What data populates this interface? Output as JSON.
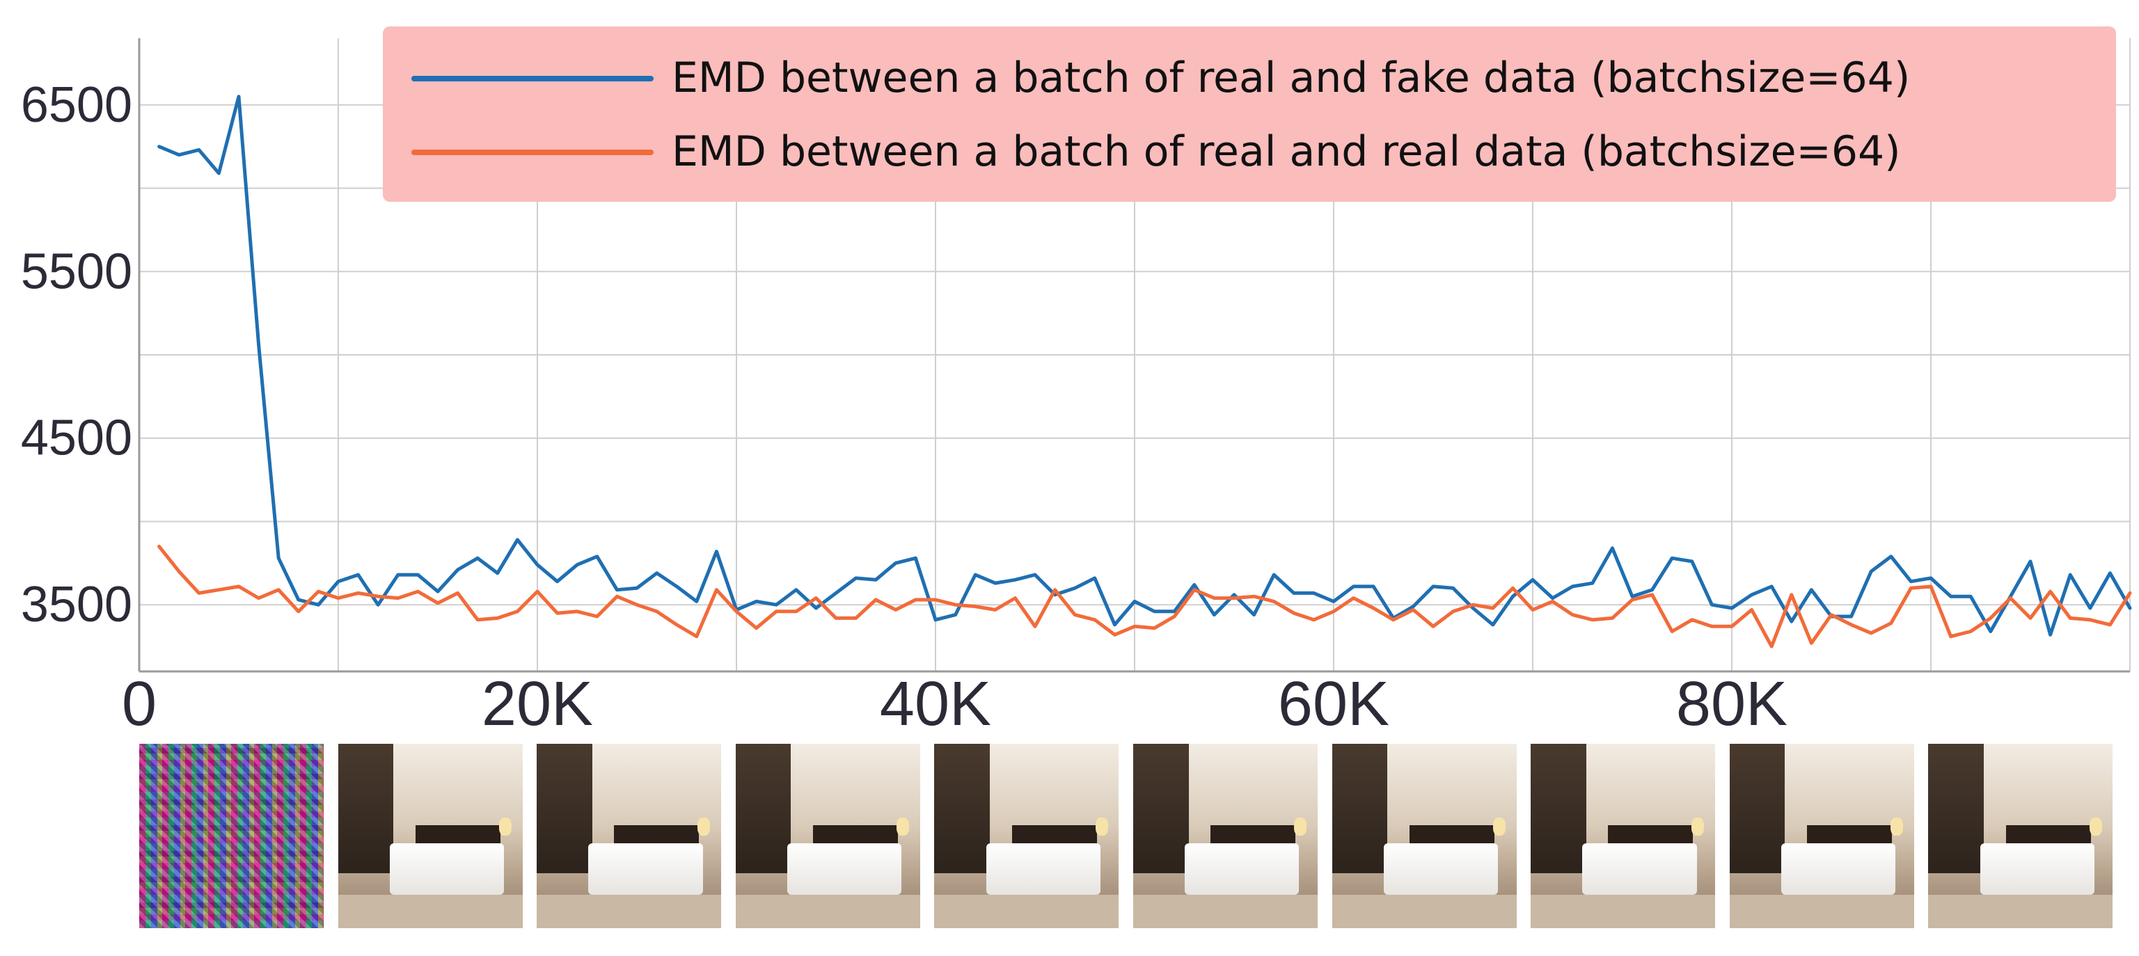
{
  "chart_data": {
    "type": "line",
    "x": [
      1000,
      2000,
      3000,
      4000,
      5000,
      6000,
      7000,
      8000,
      9000,
      10000,
      11000,
      12000,
      13000,
      14000,
      15000,
      16000,
      17000,
      18000,
      19000,
      20000,
      21000,
      22000,
      23000,
      24000,
      25000,
      26000,
      27000,
      28000,
      29000,
      30000,
      31000,
      32000,
      33000,
      34000,
      35000,
      36000,
      37000,
      38000,
      39000,
      40000,
      41000,
      42000,
      43000,
      44000,
      45000,
      46000,
      47000,
      48000,
      49000,
      50000,
      51000,
      52000,
      53000,
      54000,
      55000,
      56000,
      57000,
      58000,
      59000,
      60000,
      61000,
      62000,
      63000,
      64000,
      65000,
      66000,
      67000,
      68000,
      69000,
      70000,
      71000,
      72000,
      73000,
      74000,
      75000,
      76000,
      77000,
      78000,
      79000,
      80000,
      81000,
      82000,
      83000,
      84000,
      85000,
      86000,
      87000,
      88000,
      89000,
      90000,
      91000,
      92000,
      93000,
      94000,
      95000,
      96000,
      97000,
      98000,
      99000,
      100000
    ],
    "series": [
      {
        "name": "EMD between a batch of real and fake data (batchsize=64)",
        "color": "#1f6fb2",
        "values": [
          6250,
          6200,
          6230,
          6090,
          6550,
          5060,
          3780,
          3530,
          3500,
          3640,
          3680,
          3500,
          3680,
          3680,
          3580,
          3710,
          3780,
          3690,
          3890,
          3740,
          3640,
          3740,
          3790,
          3590,
          3600,
          3690,
          3610,
          3520,
          3820,
          3470,
          3520,
          3500,
          3590,
          3480,
          3570,
          3660,
          3650,
          3750,
          3780,
          3410,
          3440,
          3680,
          3630,
          3650,
          3680,
          3560,
          3600,
          3660,
          3380,
          3520,
          3460,
          3460,
          3620,
          3440,
          3560,
          3440,
          3680,
          3570,
          3570,
          3520,
          3610,
          3610,
          3420,
          3490,
          3610,
          3600,
          3480,
          3380,
          3550,
          3650,
          3540,
          3610,
          3630,
          3840,
          3550,
          3590,
          3780,
          3760,
          3500,
          3480,
          3560,
          3610,
          3400,
          3590,
          3430,
          3430,
          3700,
          3790,
          3640,
          3660,
          3550,
          3550,
          3340,
          3550,
          3760,
          3320,
          3680,
          3480,
          3690,
          3480
        ]
      },
      {
        "name": "EMD between a batch of real and real data (batchsize=64)",
        "color": "#f26b3a",
        "values": [
          3850,
          3700,
          3570,
          3590,
          3610,
          3540,
          3590,
          3460,
          3580,
          3540,
          3570,
          3550,
          3540,
          3580,
          3510,
          3570,
          3410,
          3420,
          3460,
          3580,
          3450,
          3460,
          3430,
          3550,
          3500,
          3460,
          3380,
          3310,
          3590,
          3460,
          3360,
          3460,
          3460,
          3540,
          3420,
          3420,
          3530,
          3470,
          3530,
          3530,
          3500,
          3490,
          3470,
          3540,
          3370,
          3590,
          3440,
          3410,
          3320,
          3370,
          3360,
          3430,
          3590,
          3540,
          3540,
          3550,
          3520,
          3450,
          3410,
          3460,
          3540,
          3480,
          3410,
          3470,
          3370,
          3460,
          3500,
          3480,
          3600,
          3470,
          3520,
          3440,
          3410,
          3420,
          3530,
          3560,
          3340,
          3410,
          3370,
          3370,
          3470,
          3250,
          3560,
          3270,
          3440,
          3380,
          3330,
          3390,
          3600,
          3610,
          3310,
          3340,
          3420,
          3540,
          3420,
          3580,
          3420,
          3410,
          3380,
          3570
        ]
      }
    ],
    "xlim": [
      0,
      100000
    ],
    "ylim": [
      3100,
      6900
    ],
    "xticks": [
      0,
      20000,
      40000,
      60000,
      80000
    ],
    "xtick_labels": [
      "0",
      "20K",
      "40K",
      "60K",
      "80K"
    ],
    "yticks": [
      3500,
      4500,
      5500,
      6500
    ],
    "ytick_labels": [
      "3500",
      "4500",
      "5500",
      "6500"
    ],
    "grid": true,
    "legend_position": "top-right",
    "legend_background": "#fbbcbc",
    "title": "",
    "xlabel": "",
    "ylabel": ""
  },
  "thumbnails": {
    "count": 10,
    "items": [
      "noise-sample",
      "bedroom-sample",
      "bedroom-sample",
      "bedroom-sample",
      "bedroom-sample",
      "bedroom-sample",
      "bedroom-sample",
      "bedroom-sample",
      "bedroom-sample",
      "bedroom-sample"
    ]
  }
}
